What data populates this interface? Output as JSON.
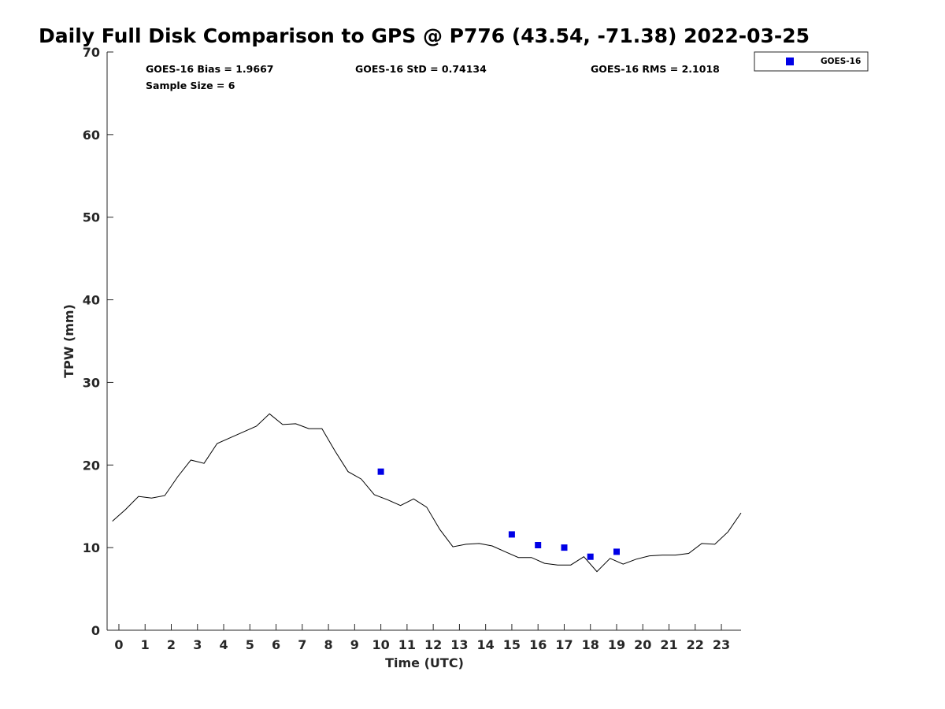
{
  "chart_data": {
    "type": "scatter",
    "title": "Daily Full Disk Comparison to GPS @ P776 (43.54, -71.38) 2022-03-25",
    "xlabel": "Time (UTC)",
    "ylabel": "TPW (mm)",
    "xlim": [
      -0.45,
      23.75
    ],
    "ylim": [
      0,
      70
    ],
    "x_ticks": [
      0,
      1,
      2,
      3,
      4,
      5,
      6,
      7,
      8,
      9,
      10,
      11,
      12,
      13,
      14,
      15,
      16,
      17,
      18,
      19,
      20,
      21,
      22,
      23
    ],
    "y_ticks": [
      0,
      10,
      20,
      30,
      40,
      50,
      60,
      70
    ],
    "grid": false,
    "legend_position": "top-right outside",
    "stats": {
      "bias": "GOES-16 Bias = 1.9667",
      "std": "GOES-16 StD = 0.74134",
      "rms": "GOES-16 RMS = 2.1018",
      "sample_size": "Sample Size = 6"
    },
    "series": [
      {
        "kind": "line",
        "color": "#000000",
        "x": [
          -0.25,
          0.25,
          0.75,
          1.25,
          1.75,
          2.25,
          2.75,
          3.25,
          3.75,
          4.25,
          4.75,
          5.25,
          5.75,
          6.25,
          6.75,
          7.25,
          7.75,
          8.25,
          8.75,
          9.25,
          9.75,
          10.25,
          10.75,
          11.25,
          11.75,
          12.25,
          12.75,
          13.25,
          13.75,
          14.25,
          14.75,
          15.25,
          15.75,
          16.25,
          16.75,
          17.25,
          17.75,
          18.25,
          18.75,
          19.25,
          19.75,
          20.25,
          20.75,
          21.25,
          21.75,
          22.25,
          22.75,
          23.25,
          23.75
        ],
        "y": [
          13.2,
          14.6,
          16.2,
          16.0,
          16.3,
          18.6,
          20.6,
          20.2,
          22.6,
          23.3,
          24.0,
          24.7,
          26.2,
          24.9,
          25.0,
          24.4,
          24.4,
          21.7,
          19.2,
          18.3,
          16.4,
          15.8,
          15.1,
          15.9,
          14.9,
          12.2,
          10.1,
          10.4,
          10.5,
          10.2,
          9.5,
          8.8,
          8.8,
          8.1,
          7.9,
          7.9,
          8.9,
          7.1,
          8.7,
          8.0,
          8.6,
          9.0,
          9.1,
          9.1,
          9.3,
          10.5,
          10.4,
          11.9,
          14.2
        ]
      },
      {
        "name": "GOES-16",
        "kind": "scatter",
        "marker": "square",
        "color": "#0000e6",
        "x": [
          10,
          15,
          16,
          17,
          18,
          19
        ],
        "y": [
          19.2,
          11.6,
          10.3,
          10.0,
          8.9,
          9.5
        ]
      }
    ]
  }
}
